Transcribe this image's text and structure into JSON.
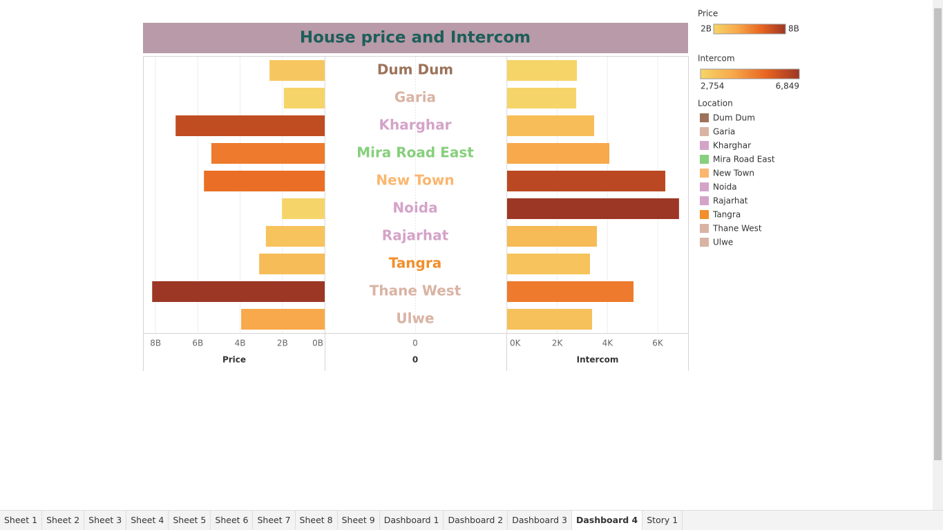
{
  "dashboard": {
    "title": "House price and Intercom"
  },
  "chart_data": [
    {
      "type": "bar",
      "orientation": "horizontal",
      "reversed": true,
      "axis_title": "Price",
      "categories": [
        "Dum Dum",
        "Garia",
        "Kharghar",
        "Mira Road East",
        "New Town",
        "Noida",
        "Rajarhat",
        "Tangra",
        "Thane West",
        "Ulwe"
      ],
      "values": [
        2610000000,
        1930000000,
        7050000000,
        5360000000,
        5710000000,
        2020000000,
        2780000000,
        3100000000,
        8160000000,
        3950000000
      ],
      "xlim": [
        0,
        8560000000
      ],
      "xticks": [
        {
          "value": 8000000000,
          "label": "8B"
        },
        {
          "value": 6000000000,
          "label": "6B"
        },
        {
          "value": 4000000000,
          "label": "4B"
        },
        {
          "value": 2000000000,
          "label": "2B"
        },
        {
          "value": 0,
          "label": "0B"
        }
      ],
      "grid": true
    },
    {
      "type": "bar",
      "orientation": "horizontal",
      "reversed": false,
      "axis_title": "Intercom",
      "categories": [
        "Dum Dum",
        "Garia",
        "Kharghar",
        "Mira Road East",
        "New Town",
        "Noida",
        "Rajarhat",
        "Tangra",
        "Thane West",
        "Ulwe"
      ],
      "values": [
        2780,
        2754,
        3468,
        4074,
        6303,
        6849,
        3578,
        3303,
        5037,
        3386
      ],
      "xlim": [
        0,
        7210
      ],
      "xticks": [
        {
          "value": 0,
          "label": "0K"
        },
        {
          "value": 2000,
          "label": "2K"
        },
        {
          "value": 4000,
          "label": "4K"
        },
        {
          "value": 6000,
          "label": "6K"
        }
      ],
      "grid": true
    }
  ],
  "center_axis": {
    "ticks": [
      0
    ],
    "title": "0"
  },
  "legends": {
    "price": {
      "title": "Price",
      "min": {
        "value": 2000000000,
        "label": "2B"
      },
      "max": {
        "value": 8000000000,
        "label": "8B"
      },
      "colors": [
        "#f5d569",
        "#f7a84a",
        "#e8641f",
        "#9c3725"
      ]
    },
    "intercom": {
      "title": "Intercom",
      "min": {
        "value": 2754,
        "label": "2,754"
      },
      "max": {
        "value": 6849,
        "label": "6,849"
      },
      "colors": [
        "#f5d569",
        "#f7a84a",
        "#e8641f",
        "#9c3725"
      ]
    },
    "location": {
      "title": "Location",
      "colors": [
        "#9c735a",
        "#d9b3a3",
        "#d4a3c8",
        "#86cf7c",
        "#fbb66f",
        "#d4a3c8",
        "#d4a3c8",
        "#f28e2b",
        "#d9b3a3",
        "#d9b3a3"
      ]
    }
  },
  "tabs": {
    "items": [
      "Sheet 1",
      "Sheet 2",
      "Sheet 3",
      "Sheet 4",
      "Sheet 5",
      "Sheet 6",
      "Sheet 7",
      "Sheet 8",
      "Sheet 9",
      "Dashboard 1",
      "Dashboard 2",
      "Dashboard 3",
      "Dashboard 4",
      "Story 1"
    ],
    "active": 12
  }
}
